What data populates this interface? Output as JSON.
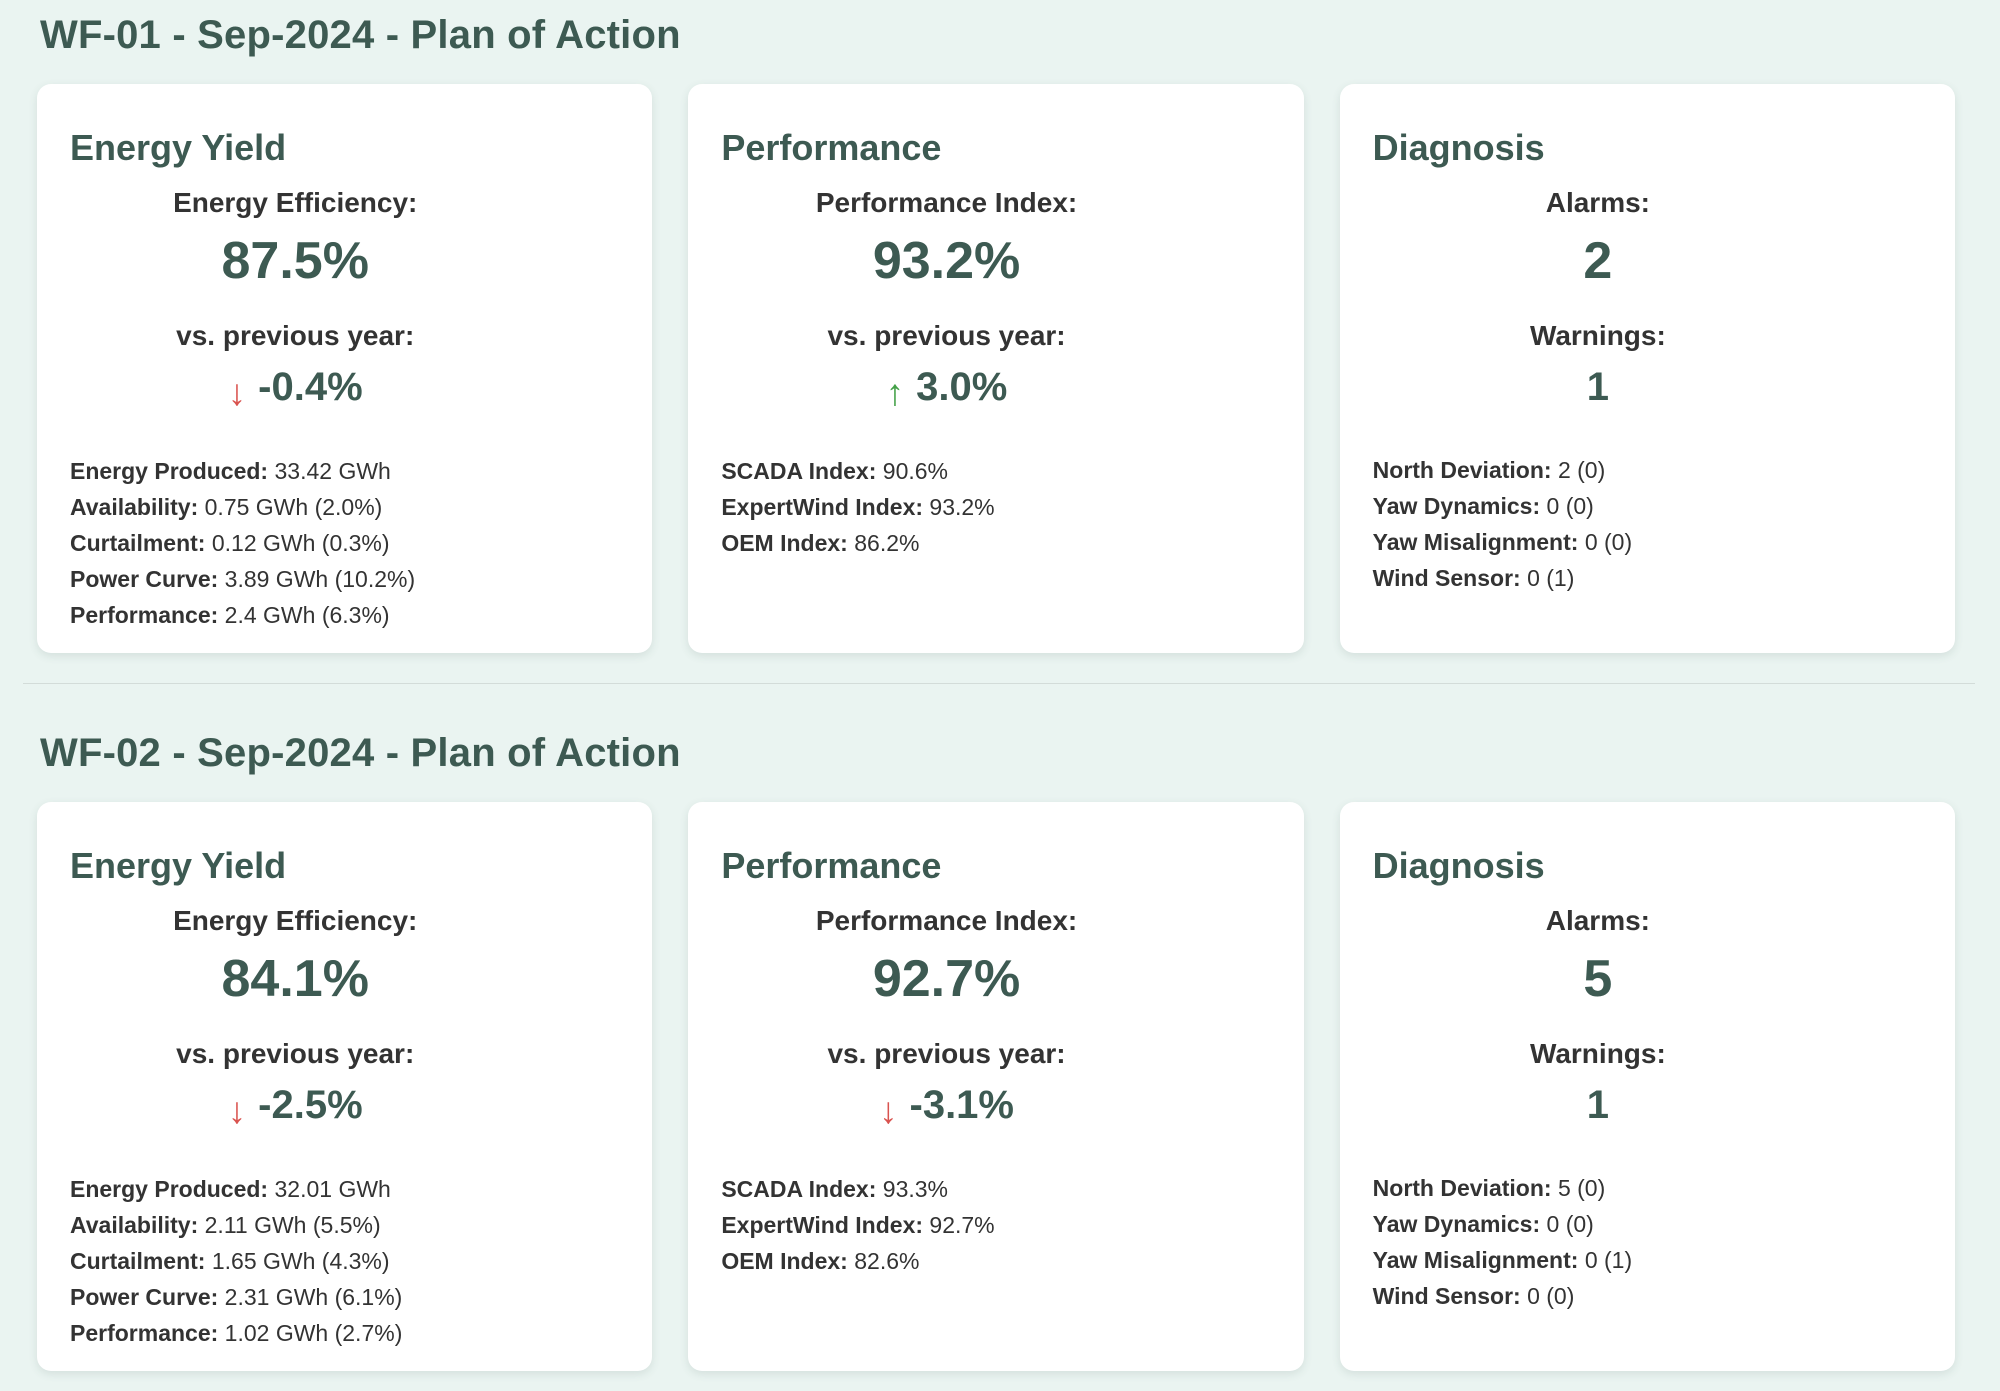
{
  "page": {
    "background_color": "#eaf4f1",
    "card_color": "#ffffff",
    "accent_color": "#3d5a52",
    "text_color": "#333333",
    "negative_color": "#d9534f",
    "positive_color": "#43a047"
  },
  "sections": [
    {
      "title": "WF-01 - Sep-2024 - Plan of Action",
      "cards": [
        {
          "title": "Energy Yield",
          "metrics": [
            {
              "label": "Energy Efficiency:",
              "value": "87.5%"
            },
            {
              "label": "vs. previous year:",
              "value": "-0.4%",
              "trend": "down"
            }
          ],
          "details": [
            {
              "label": "Energy Produced:",
              "value": "33.42 GWh"
            },
            {
              "label": "Availability:",
              "value": "0.75 GWh (2.0%)"
            },
            {
              "label": "Curtailment:",
              "value": "0.12 GWh (0.3%)"
            },
            {
              "label": "Power Curve:",
              "value": "3.89 GWh (10.2%)"
            },
            {
              "label": "Performance:",
              "value": "2.4 GWh (6.3%)"
            }
          ]
        },
        {
          "title": "Performance",
          "metrics": [
            {
              "label": "Performance Index:",
              "value": "93.2%"
            },
            {
              "label": "vs. previous year:",
              "value": "3.0%",
              "trend": "up"
            }
          ],
          "details": [
            {
              "label": "SCADA Index:",
              "value": "90.6%"
            },
            {
              "label": "ExpertWind Index:",
              "value": "93.2%"
            },
            {
              "label": "OEM Index:",
              "value": "86.2%"
            }
          ]
        },
        {
          "title": "Diagnosis",
          "metrics": [
            {
              "label": "Alarms:",
              "value": "2"
            },
            {
              "label": "Warnings:",
              "value": "1"
            }
          ],
          "details": [
            {
              "label": "North Deviation:",
              "value": "2 (0)"
            },
            {
              "label": "Yaw Dynamics:",
              "value": "0 (0)"
            },
            {
              "label": "Yaw Misalignment:",
              "value": "0 (0)"
            },
            {
              "label": "Wind Sensor:",
              "value": "0 (1)"
            }
          ]
        }
      ]
    },
    {
      "title": "WF-02 - Sep-2024 - Plan of Action",
      "cards": [
        {
          "title": "Energy Yield",
          "metrics": [
            {
              "label": "Energy Efficiency:",
              "value": "84.1%"
            },
            {
              "label": "vs. previous year:",
              "value": "-2.5%",
              "trend": "down"
            }
          ],
          "details": [
            {
              "label": "Energy Produced:",
              "value": "32.01 GWh"
            },
            {
              "label": "Availability:",
              "value": "2.11 GWh (5.5%)"
            },
            {
              "label": "Curtailment:",
              "value": "1.65 GWh (4.3%)"
            },
            {
              "label": "Power Curve:",
              "value": "2.31 GWh (6.1%)"
            },
            {
              "label": "Performance:",
              "value": "1.02 GWh (2.7%)"
            }
          ]
        },
        {
          "title": "Performance",
          "metrics": [
            {
              "label": "Performance Index:",
              "value": "92.7%"
            },
            {
              "label": "vs. previous year:",
              "value": "-3.1%",
              "trend": "down"
            }
          ],
          "details": [
            {
              "label": "SCADA Index:",
              "value": "93.3%"
            },
            {
              "label": "ExpertWind Index:",
              "value": "92.7%"
            },
            {
              "label": "OEM Index:",
              "value": "82.6%"
            }
          ]
        },
        {
          "title": "Diagnosis",
          "metrics": [
            {
              "label": "Alarms:",
              "value": "5"
            },
            {
              "label": "Warnings:",
              "value": "1"
            }
          ],
          "details": [
            {
              "label": "North Deviation:",
              "value": "5 (0)"
            },
            {
              "label": "Yaw Dynamics:",
              "value": "0 (0)"
            },
            {
              "label": "Yaw Misalignment:",
              "value": "0 (1)"
            },
            {
              "label": "Wind Sensor:",
              "value": "0 (0)"
            }
          ]
        }
      ]
    }
  ]
}
